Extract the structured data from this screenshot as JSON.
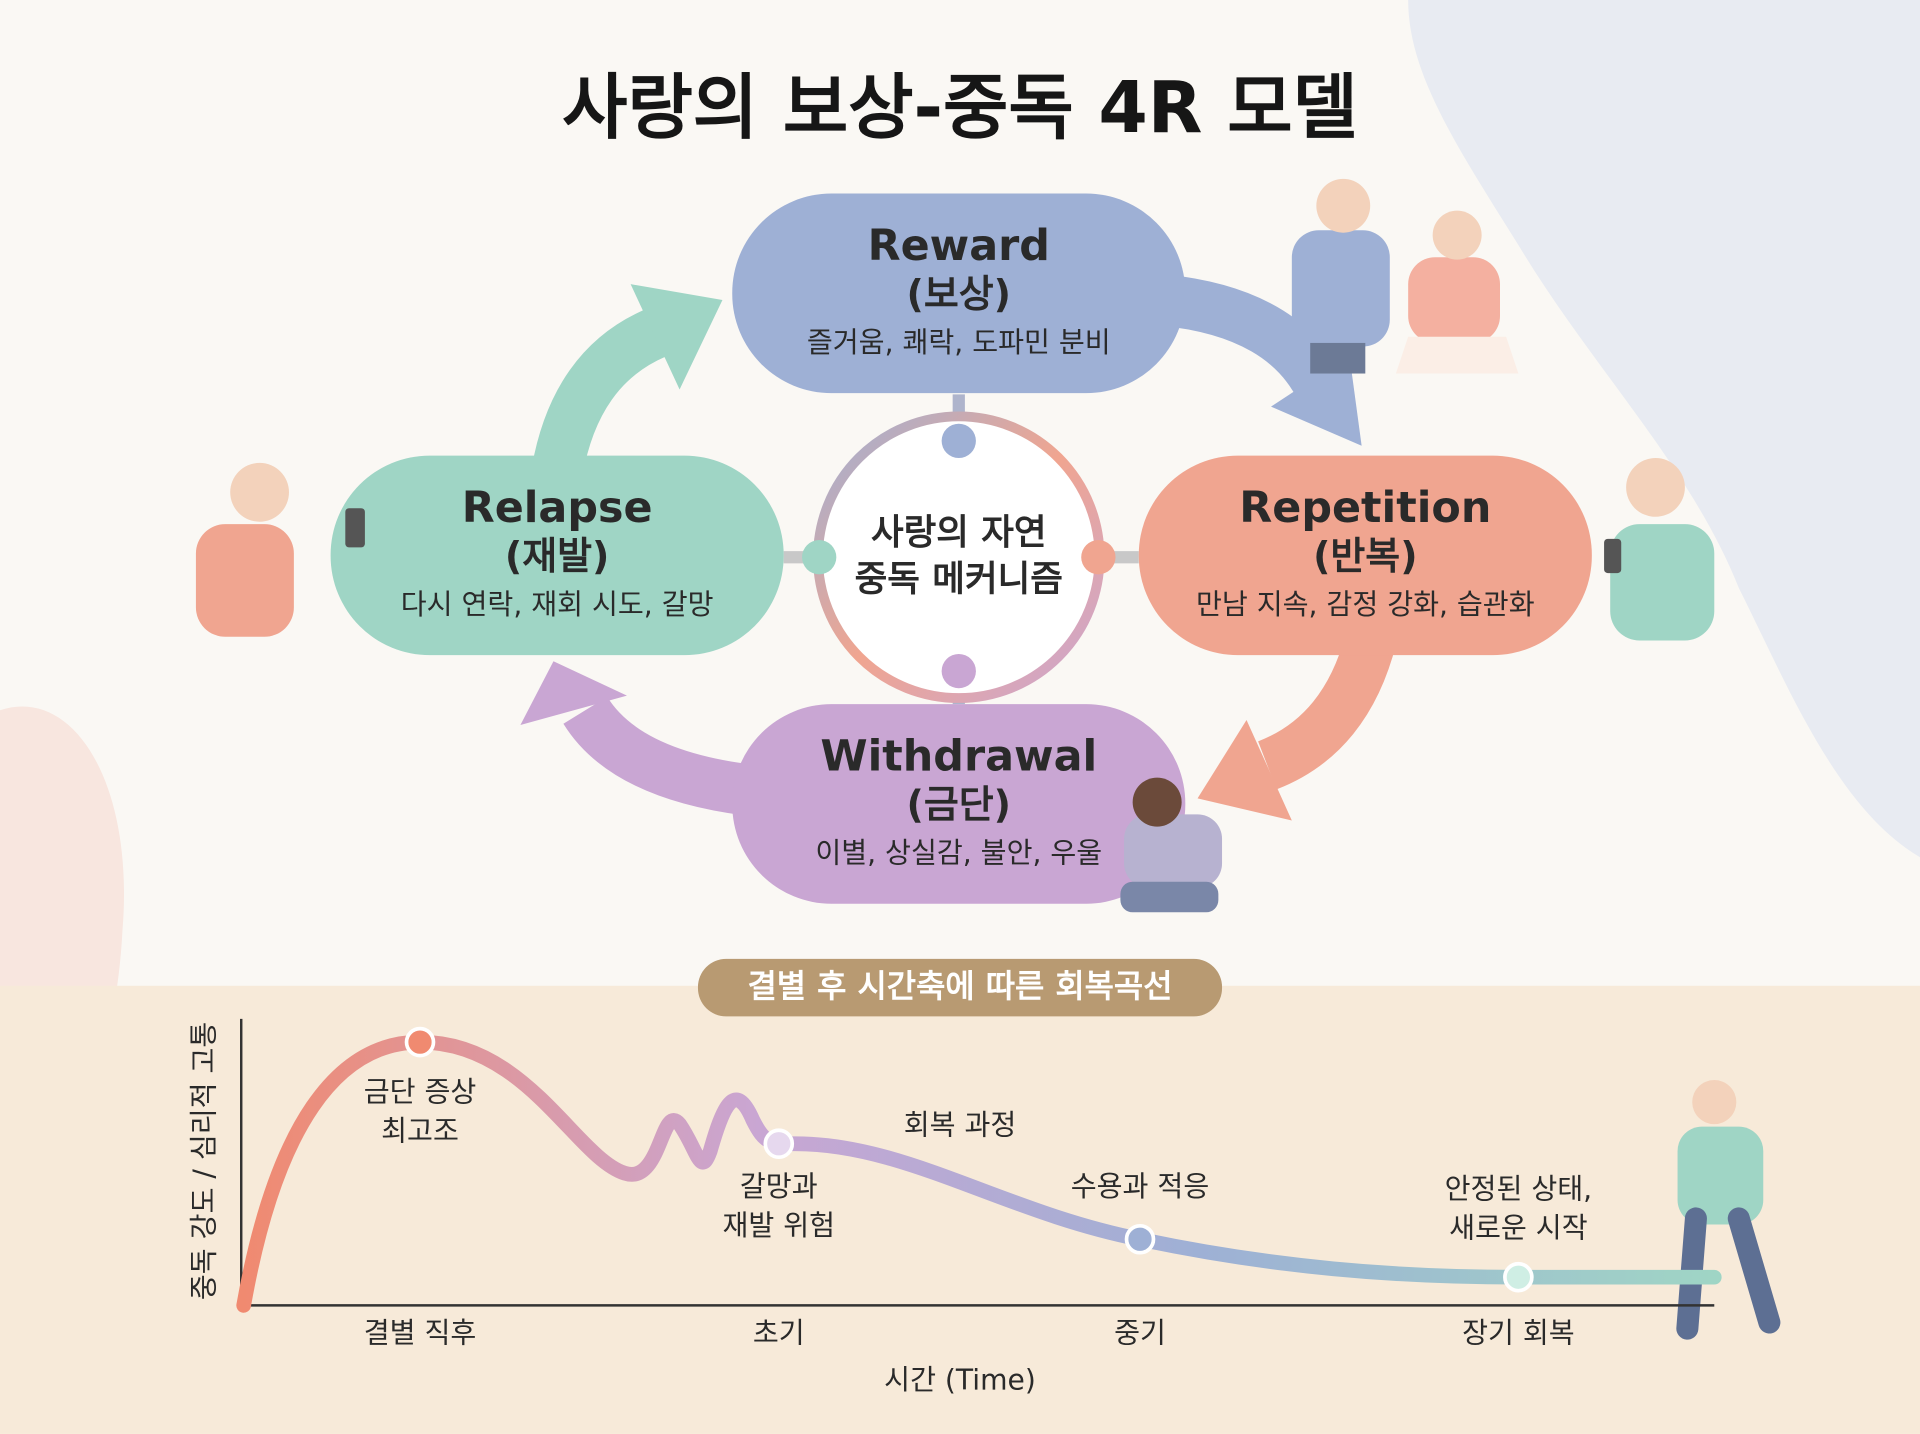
{
  "title": "사랑의 보상-중독 4R 모델",
  "center": {
    "lines": [
      "사랑의 자연",
      "중독 메커니즘"
    ]
  },
  "nodes": [
    {
      "name": "Reward",
      "korean": "(보상)",
      "description": "즐거움, 쾌락, 도파민 분비"
    },
    {
      "name": "Repetition",
      "korean": "(반복)",
      "description": "만남 지속, 감정 강화, 습관화"
    },
    {
      "name": "Withdrawal",
      "korean": "(금단)",
      "description": "이별, 상실감, 불안, 우울"
    },
    {
      "name": "Relapse",
      "korean": "(재발)",
      "description": "다시 연락, 재회 시도, 갈망"
    }
  ],
  "curve": {
    "title": "결별 후 시간축에 따른 회복곡선",
    "y_label": "중독 강도 / 심리적 고통",
    "x_label": "시간 (Time)",
    "x_categories": [
      "결별 직후",
      "초기",
      "중기",
      "장기 회복"
    ],
    "annotations": [
      {
        "lines": [
          "금단 증상",
          "최고조"
        ]
      },
      {
        "lines": [
          "갈망과",
          "재발 위험"
        ]
      },
      {
        "lines": [
          "회복 과정"
        ]
      },
      {
        "lines": [
          "수용과 적응"
        ]
      },
      {
        "lines": [
          "안정된 상태,",
          "새로운 시작"
        ]
      }
    ]
  }
}
